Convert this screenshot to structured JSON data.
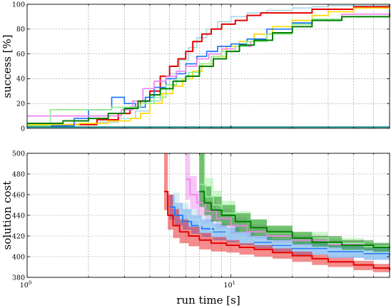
{
  "chart_data": [
    {
      "type": "line",
      "step": true,
      "xlabel": "",
      "ylabel": "success [%]",
      "xscale": "log",
      "xlim": [
        1,
        60
      ],
      "ylim": [
        0,
        100
      ],
      "yticks": [
        0,
        20,
        40,
        60,
        80,
        100
      ],
      "xticks_labeled": [],
      "grid": true,
      "legend": "none",
      "series": [
        {
          "color": "#add8e6",
          "x": [
            1,
            1.5,
            2.2,
            2.8,
            3.4,
            4.0,
            4.5,
            5.0,
            5.6,
            6.2,
            6.8,
            7.6,
            8.6,
            10,
            12,
            15,
            20,
            25,
            30,
            60
          ],
          "y": [
            3,
            3,
            5,
            8,
            14,
            22,
            32,
            44,
            55,
            65,
            73,
            80,
            86,
            90,
            93,
            95,
            97,
            98,
            99,
            99
          ]
        },
        {
          "color": "#e60000",
          "x": [
            1,
            1.6,
            2.2,
            2.8,
            3.2,
            3.6,
            4.0,
            4.5,
            5.0,
            5.5,
            6.0,
            6.5,
            7.2,
            8.0,
            9.0,
            10.5,
            12,
            14,
            18,
            25,
            40,
            60
          ],
          "y": [
            2,
            3,
            7,
            12,
            17,
            22,
            30,
            42,
            50,
            56,
            62,
            70,
            76,
            80,
            84,
            87,
            91,
            93,
            93,
            96,
            98,
            100
          ]
        },
        {
          "color": "#ffd700",
          "x": [
            1,
            1.8,
            2.5,
            3.2,
            3.6,
            4.0,
            4.6,
            5.2,
            5.8,
            6.5,
            7.2,
            8.2,
            9.5,
            11,
            13,
            16,
            20,
            25,
            30,
            40,
            60
          ],
          "y": [
            3,
            4,
            6,
            8,
            12,
            20,
            28,
            34,
            40,
            46,
            52,
            58,
            66,
            70,
            76,
            82,
            87,
            91,
            94,
            97,
            98
          ]
        },
        {
          "color": "#1f77ff",
          "x": [
            1,
            1.7,
            2.0,
            2.6,
            3.0,
            3.4,
            3.8,
            4.2,
            4.8,
            5.4,
            6.0,
            6.8,
            7.6,
            8.6,
            10,
            12,
            15,
            20,
            25,
            35,
            60
          ],
          "y": [
            2,
            8,
            15,
            25,
            20,
            17,
            25,
            33,
            40,
            44,
            52,
            58,
            62,
            66,
            68,
            72,
            80,
            85,
            88,
            90,
            96
          ]
        },
        {
          "color": "#ee82ee",
          "x": [
            1,
            1.6,
            2.2,
            2.9,
            3.3,
            3.7,
            4.2,
            4.8,
            5.4,
            6.0,
            6.8,
            7.8,
            9.0,
            10.5,
            12.5,
            15,
            20,
            25,
            35,
            60
          ],
          "y": [
            10,
            10,
            10,
            15,
            22,
            32,
            38,
            42,
            46,
            50,
            56,
            60,
            64,
            66,
            70,
            76,
            84,
            88,
            92,
            94
          ]
        },
        {
          "color": "#90ee90",
          "x": [
            1,
            1.3,
            2.0,
            2.6,
            3.2,
            3.6,
            4.2,
            4.8,
            5.4,
            6.2,
            7.0,
            8.0,
            9.0,
            10.5,
            12,
            15,
            20,
            25,
            35,
            60
          ],
          "y": [
            2,
            15,
            15,
            17,
            17,
            20,
            25,
            35,
            40,
            45,
            52,
            58,
            62,
            66,
            70,
            76,
            84,
            88,
            90,
            94
          ]
        },
        {
          "color": "#008000",
          "x": [
            1,
            1.5,
            2.0,
            2.5,
            3.0,
            3.5,
            4.0,
            4.5,
            5.2,
            6.0,
            7.0,
            8.2,
            9.5,
            11,
            13,
            16,
            20,
            25,
            35,
            60
          ],
          "y": [
            4,
            6,
            8,
            12,
            16,
            22,
            27,
            32,
            38,
            42,
            50,
            56,
            62,
            67,
            71,
            77,
            82,
            87,
            90,
            93
          ]
        },
        {
          "color": "#008080",
          "x": [
            1,
            60
          ],
          "y": [
            1,
            1
          ]
        }
      ]
    },
    {
      "type": "line",
      "step": true,
      "shaded_bands": true,
      "xlabel": "run time [s]",
      "ylabel": "solution cost",
      "xscale": "log",
      "xlim": [
        1,
        60
      ],
      "ylim": [
        380,
        500
      ],
      "yticks": [
        380,
        400,
        420,
        440,
        460,
        480,
        500
      ],
      "xticks_labeled": [
        1,
        10
      ],
      "xtick_labels": [
        "10^0",
        "10^1"
      ],
      "grid": true,
      "legend": "none",
      "series": [
        {
          "color": "#ee82ee",
          "x": [
            6.0,
            6.3,
            6.8,
            7.5,
            8.5,
            10,
            12,
            15,
            20,
            30,
            45,
            60
          ],
          "y": [
            475,
            460,
            452,
            444,
            437,
            430,
            424,
            420,
            416,
            412,
            410,
            408
          ],
          "upper": [
            500,
            478,
            464,
            454,
            446,
            438,
            431,
            426,
            421,
            416,
            413,
            411
          ],
          "lower": [
            455,
            446,
            440,
            434,
            428,
            422,
            418,
            414,
            411,
            408,
            406,
            404
          ]
        },
        {
          "color": "#90ee90",
          "x": [
            7.0,
            7.5,
            8.2,
            9.0,
            10.5,
            12.5,
            15,
            20,
            30,
            45,
            60
          ],
          "y": [
            470,
            458,
            450,
            442,
            434,
            428,
            423,
            418,
            413,
            410,
            408
          ],
          "upper": [
            500,
            476,
            464,
            454,
            444,
            436,
            430,
            424,
            418,
            414,
            412
          ],
          "lower": [
            450,
            442,
            436,
            430,
            424,
            420,
            416,
            412,
            408,
            406,
            404
          ]
        },
        {
          "color": "#1f77ff",
          "x": [
            5.0,
            5.3,
            5.8,
            6.4,
            7.2,
            8.2,
            9.5,
            11,
            13,
            16,
            20,
            30,
            45,
            60
          ],
          "y": [
            448,
            440,
            434,
            430,
            427,
            424,
            421,
            418,
            414,
            411,
            408,
            405,
            403,
            401
          ],
          "upper": [
            460,
            452,
            446,
            440,
            436,
            432,
            428,
            424,
            420,
            417,
            414,
            411,
            408,
            406
          ],
          "lower": [
            436,
            430,
            426,
            422,
            419,
            416,
            414,
            411,
            408,
            405,
            402,
            399,
            397,
            396
          ]
        },
        {
          "color": "#add8e6",
          "x": [
            5.2,
            5.6,
            6.2,
            7.0,
            8.0,
            9.5,
            11,
            13,
            16,
            20,
            30,
            45,
            60
          ],
          "y": [
            450,
            442,
            436,
            430,
            425,
            421,
            418,
            415,
            412,
            409,
            406,
            404,
            403
          ],
          "upper": [
            462,
            452,
            446,
            440,
            434,
            429,
            425,
            421,
            418,
            415,
            411,
            409,
            407
          ],
          "lower": [
            438,
            432,
            426,
            421,
            417,
            413,
            411,
            409,
            406,
            403,
            400,
            398,
            397
          ]
        },
        {
          "color": "#008000",
          "x": [
            7.0,
            7.4,
            8.0,
            9.0,
            10.5,
            12.5,
            15,
            20,
            25,
            35,
            50,
            60
          ],
          "y": [
            463,
            452,
            445,
            440,
            434,
            428,
            424,
            418,
            414,
            411,
            409,
            408
          ],
          "upper": [
            500,
            468,
            458,
            450,
            442,
            436,
            430,
            424,
            420,
            416,
            413,
            412
          ],
          "lower": [
            448,
            440,
            434,
            430,
            424,
            420,
            416,
            412,
            409,
            406,
            404,
            403
          ]
        },
        {
          "color": "#e60000",
          "x": [
            4.7,
            4.9,
            5.2,
            5.6,
            6.2,
            7.0,
            8.0,
            9.5,
            11,
            13,
            16,
            20,
            25,
            30,
            40,
            50,
            60
          ],
          "y": [
            463,
            440,
            430,
            424,
            420,
            416,
            413,
            411,
            409,
            407,
            404,
            401,
            398,
            395,
            392,
            389,
            387
          ],
          "upper": [
            500,
            460,
            446,
            436,
            429,
            423,
            419,
            416,
            413,
            411,
            408,
            405,
            402,
            399,
            396,
            393,
            390
          ],
          "lower": [
            445,
            426,
            418,
            413,
            410,
            407,
            405,
            404,
            402,
            400,
            398,
            395,
            392,
            390,
            387,
            385,
            383
          ]
        }
      ]
    }
  ]
}
